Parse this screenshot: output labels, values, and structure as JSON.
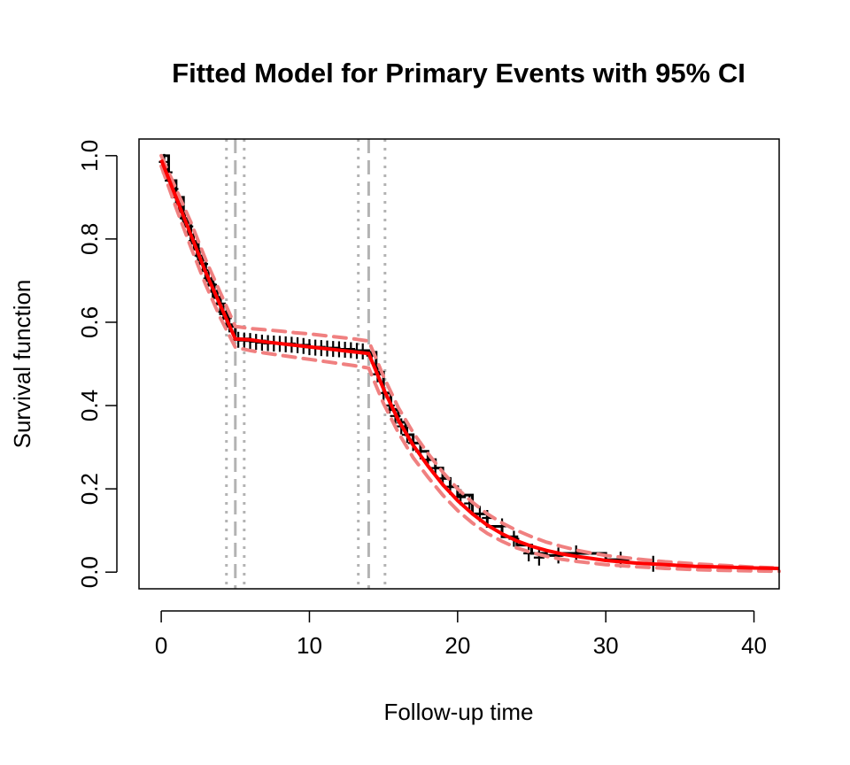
{
  "chart_data": {
    "type": "line",
    "title": "Fitted Model for Primary Events with 95% CI",
    "xlabel": "Follow-up time",
    "ylabel": "Survival function",
    "xlim": [
      -1.5,
      41.7
    ],
    "ylim": [
      -0.04,
      1.04
    ],
    "x_ticks": [
      0,
      10,
      20,
      30,
      40
    ],
    "y_ticks": [
      0.0,
      0.2,
      0.4,
      0.6,
      0.8,
      1.0
    ],
    "y_tick_labels": [
      "0.0",
      "0.2",
      "0.4",
      "0.6",
      "0.8",
      "1.0"
    ],
    "grid": false,
    "legend": "none",
    "changepoints": [
      {
        "estimate": 5.0,
        "ci": [
          4.4,
          5.6
        ]
      },
      {
        "estimate": 14.0,
        "ci": [
          13.3,
          15.1
        ]
      }
    ],
    "series": [
      {
        "role": "kaplan-meier",
        "color": "#000000",
        "x": [
          0,
          0.5,
          1,
          1.5,
          2,
          2.5,
          3,
          3.5,
          4,
          4.5,
          5,
          6,
          7,
          8,
          9,
          10,
          11,
          12,
          13,
          14,
          14.5,
          15,
          15.5,
          16,
          16.5,
          17,
          17.5,
          18,
          18.5,
          19,
          19.5,
          20,
          21,
          22,
          23,
          24,
          25,
          26,
          27,
          28,
          29,
          30,
          31,
          31.5
        ],
        "y": [
          1.0,
          0.94,
          0.9,
          0.84,
          0.79,
          0.75,
          0.7,
          0.66,
          0.62,
          0.59,
          0.56,
          0.555,
          0.55,
          0.548,
          0.545,
          0.54,
          0.538,
          0.535,
          0.532,
          0.528,
          0.48,
          0.43,
          0.39,
          0.36,
          0.33,
          0.31,
          0.29,
          0.27,
          0.25,
          0.225,
          0.205,
          0.185,
          0.14,
          0.11,
          0.085,
          0.065,
          0.045,
          0.04,
          0.045,
          0.045,
          0.045,
          0.03,
          0.03,
          0.02
        ]
      },
      {
        "role": "censoring-marks",
        "color": "#000000",
        "x": [
          0.2,
          0.4,
          0.6,
          0.8,
          1.0,
          1.2,
          1.4,
          1.6,
          1.8,
          2.0,
          2.2,
          2.4,
          2.6,
          2.8,
          3.0,
          3.2,
          3.4,
          3.6,
          3.8,
          4.0,
          4.2,
          4.4,
          4.6,
          5.2,
          5.6,
          6.0,
          6.4,
          6.8,
          7.2,
          7.6,
          8.0,
          8.4,
          8.8,
          9.2,
          9.6,
          10.0,
          10.4,
          10.8,
          11.2,
          11.6,
          12.0,
          12.4,
          12.8,
          13.2,
          13.6,
          14.2,
          14.6,
          15.0,
          15.4,
          15.8,
          16.2,
          16.6,
          17.0,
          17.5,
          18.0,
          18.5,
          19.0,
          19.5,
          20.2,
          20.8,
          21.5,
          22.0,
          23.0,
          23.8,
          24.8,
          25.5,
          26.8,
          28.0,
          31.0,
          33.2
        ],
        "y": [
          0.985,
          0.96,
          0.94,
          0.92,
          0.9,
          0.885,
          0.865,
          0.85,
          0.83,
          0.81,
          0.795,
          0.775,
          0.76,
          0.74,
          0.725,
          0.705,
          0.69,
          0.675,
          0.66,
          0.645,
          0.625,
          0.61,
          0.595,
          0.558,
          0.556,
          0.555,
          0.553,
          0.551,
          0.55,
          0.549,
          0.548,
          0.547,
          0.546,
          0.545,
          0.543,
          0.54,
          0.539,
          0.538,
          0.537,
          0.536,
          0.535,
          0.534,
          0.533,
          0.531,
          0.53,
          0.52,
          0.475,
          0.43,
          0.4,
          0.375,
          0.35,
          0.33,
          0.31,
          0.29,
          0.27,
          0.25,
          0.225,
          0.205,
          0.18,
          0.165,
          0.14,
          0.13,
          0.11,
          0.08,
          0.045,
          0.035,
          0.04,
          0.045,
          0.03,
          0.02
        ]
      },
      {
        "role": "fitted",
        "color": "#ff0000",
        "x": [
          0,
          1,
          2,
          3,
          4,
          5,
          6,
          7,
          8,
          9,
          10,
          11,
          12,
          13,
          14,
          15,
          16,
          17,
          18,
          19,
          20,
          21,
          22,
          23,
          24,
          25,
          26,
          27,
          28,
          29,
          30,
          32,
          34,
          36,
          38,
          40,
          41.7
        ],
        "y": [
          0.99,
          0.9,
          0.81,
          0.72,
          0.64,
          0.56,
          0.558,
          0.553,
          0.549,
          0.545,
          0.541,
          0.537,
          0.533,
          0.529,
          0.525,
          0.44,
          0.365,
          0.305,
          0.255,
          0.21,
          0.172,
          0.14,
          0.113,
          0.092,
          0.075,
          0.062,
          0.052,
          0.044,
          0.038,
          0.033,
          0.028,
          0.022,
          0.018,
          0.014,
          0.012,
          0.01,
          0.009
        ]
      },
      {
        "role": "ci-upper",
        "color": "#f08080",
        "x": [
          0,
          1,
          2,
          3,
          4,
          5,
          6,
          7,
          8,
          9,
          10,
          11,
          12,
          13,
          14,
          15,
          16,
          17,
          18,
          19,
          20,
          21,
          22,
          23,
          24,
          25,
          26,
          27,
          28,
          29,
          30,
          32,
          34,
          36,
          38,
          40,
          41.7
        ],
        "y": [
          1.0,
          0.92,
          0.84,
          0.75,
          0.67,
          0.59,
          0.585,
          0.582,
          0.579,
          0.575,
          0.572,
          0.568,
          0.564,
          0.56,
          0.555,
          0.47,
          0.395,
          0.335,
          0.285,
          0.24,
          0.2,
          0.168,
          0.14,
          0.118,
          0.1,
          0.085,
          0.072,
          0.062,
          0.053,
          0.046,
          0.04,
          0.032,
          0.025,
          0.02,
          0.016,
          0.012,
          0.01
        ]
      },
      {
        "role": "ci-lower",
        "color": "#f08080",
        "x": [
          0,
          1,
          2,
          3,
          4,
          5,
          6,
          7,
          8,
          9,
          10,
          11,
          12,
          13,
          14,
          15,
          16,
          17,
          18,
          19,
          20,
          21,
          22,
          23,
          24,
          25,
          26,
          27,
          28,
          29,
          30,
          32,
          34,
          36,
          38,
          40,
          41.7
        ],
        "y": [
          0.975,
          0.875,
          0.78,
          0.69,
          0.61,
          0.54,
          0.532,
          0.526,
          0.521,
          0.516,
          0.511,
          0.506,
          0.501,
          0.496,
          0.49,
          0.405,
          0.335,
          0.275,
          0.228,
          0.185,
          0.148,
          0.118,
          0.093,
          0.074,
          0.058,
          0.047,
          0.038,
          0.031,
          0.026,
          0.022,
          0.018,
          0.013,
          0.009,
          0.006,
          0.004,
          0.003,
          0.002
        ]
      }
    ]
  }
}
